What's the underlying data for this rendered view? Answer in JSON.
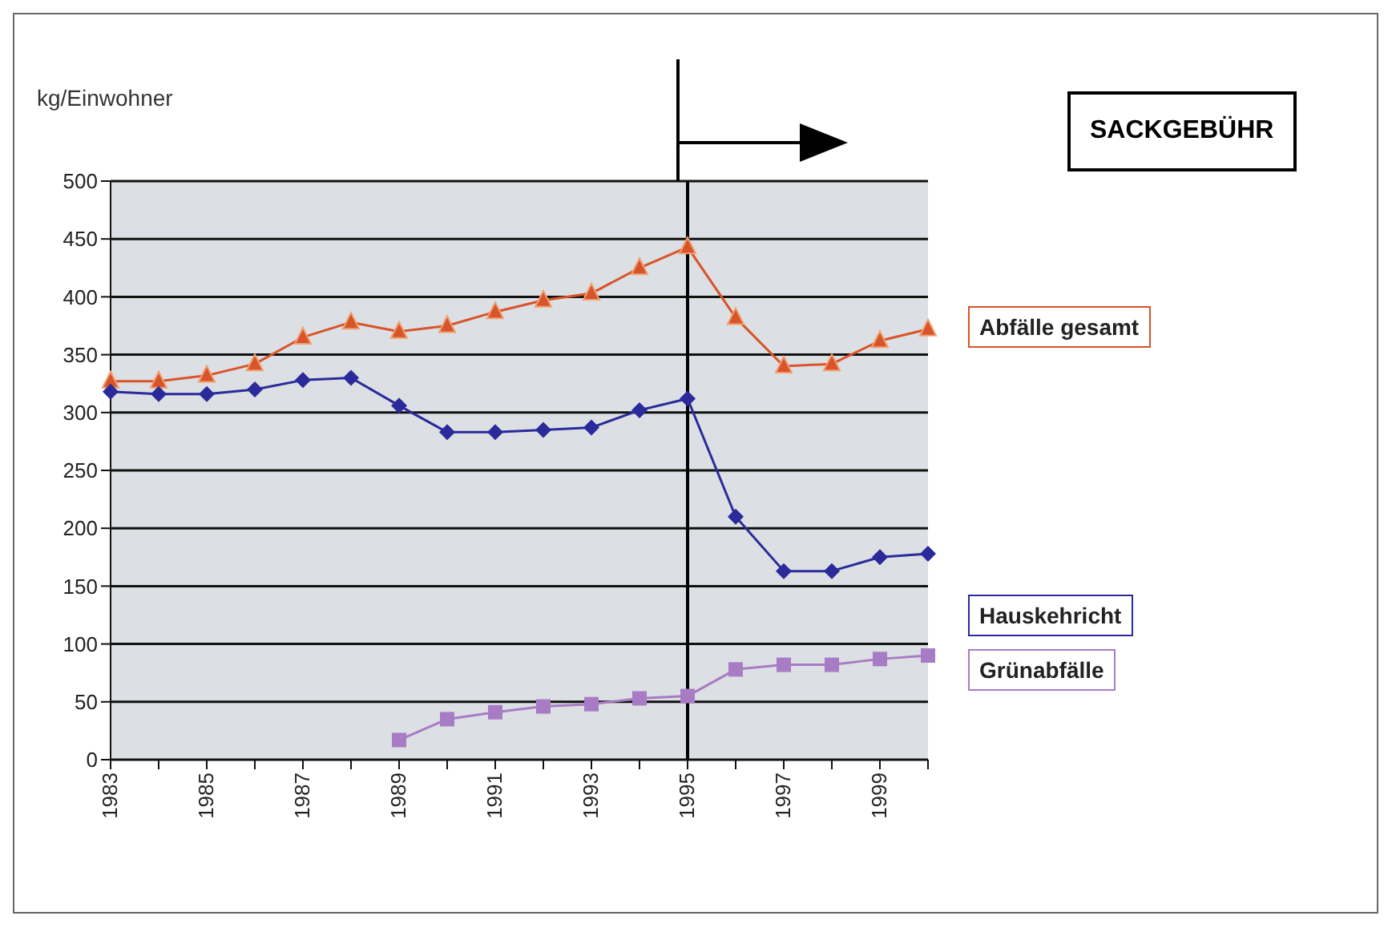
{
  "chart_data": {
    "type": "line",
    "ylabel": "kg/Einwohner",
    "categories": [
      "1983",
      null,
      "1985",
      null,
      "1987",
      null,
      "1989",
      null,
      "1991",
      null,
      "1993",
      null,
      "1995",
      null,
      "1997",
      null,
      "1999",
      null
    ],
    "series": [
      {
        "name": "Abfälle gesamt",
        "color": "#d8542a",
        "marker": "triangle",
        "values": [
          327,
          327,
          332,
          342,
          365,
          378,
          370,
          375,
          387,
          397,
          403,
          425,
          443,
          382,
          340,
          342,
          362,
          372
        ]
      },
      {
        "name": "Hauskehricht",
        "color": "#2a2a9a",
        "marker": "diamond",
        "values": [
          318,
          316,
          316,
          320,
          328,
          330,
          306,
          283,
          283,
          285,
          287,
          302,
          312,
          210,
          163,
          163,
          175,
          178
        ]
      },
      {
        "name": "Grünabfälle",
        "color": "#a77cc5",
        "marker": "square",
        "values": [
          null,
          null,
          null,
          null,
          null,
          null,
          17,
          35,
          41,
          46,
          48,
          53,
          55,
          78,
          82,
          82,
          87,
          90
        ]
      }
    ],
    "ylim": [
      0,
      500
    ],
    "yticks": [
      0,
      50,
      100,
      150,
      200,
      250,
      300,
      350,
      400,
      450,
      500
    ],
    "grid": "y",
    "legend": "right",
    "line_style": "solid",
    "ref_lines": [
      {
        "axis": "x",
        "value": "1995",
        "color": "#000000"
      }
    ],
    "annotations": [
      "SACKGEBÜHR"
    ]
  }
}
